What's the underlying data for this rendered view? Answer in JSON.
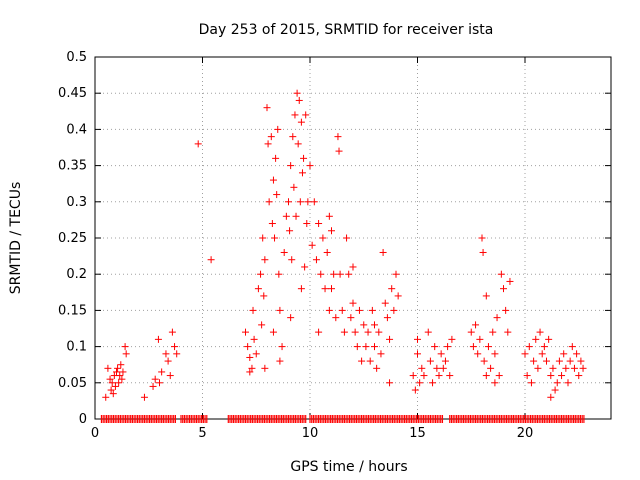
{
  "chart_data": {
    "type": "scatter",
    "title": "Day 253 of 2015, SRMTID for receiver ista",
    "xlabel": "GPS time / hours",
    "ylabel": "SRMTID / TECUs",
    "xlim": [
      0,
      24
    ],
    "ylim": [
      0,
      0.5
    ],
    "xticks": [
      0,
      5,
      10,
      15,
      20
    ],
    "yticks": [
      0,
      0.05,
      0.1,
      0.15,
      0.2,
      0.25,
      0.3,
      0.35,
      0.4,
      0.45,
      0.5
    ],
    "xtick_labels": [
      "0",
      "5",
      "10",
      "15",
      "20"
    ],
    "ytick_labels": [
      "0",
      "0.05",
      "0.1",
      "0.15",
      "0.2",
      "0.25",
      "0.3",
      "0.35",
      "0.4",
      "0.45",
      "0.5"
    ],
    "grid": true,
    "marker": "+",
    "marker_color": "#ff0000",
    "zero_line_segments": [
      [
        0.3,
        3.8
      ],
      [
        4.0,
        5.2
      ],
      [
        6.2,
        9.8
      ],
      [
        10.0,
        16.2
      ],
      [
        16.5,
        22.8
      ]
    ],
    "points": [
      [
        0.6,
        0.07
      ],
      [
        0.7,
        0.055
      ],
      [
        0.75,
        0.04
      ],
      [
        0.8,
        0.05
      ],
      [
        0.85,
        0.035
      ],
      [
        0.9,
        0.06
      ],
      [
        0.95,
        0.045
      ],
      [
        1.0,
        0.065
      ],
      [
        1.05,
        0.07
      ],
      [
        1.1,
        0.05
      ],
      [
        1.15,
        0.06
      ],
      [
        1.2,
        0.075
      ],
      [
        1.25,
        0.055
      ],
      [
        1.3,
        0.065
      ],
      [
        1.4,
        0.1
      ],
      [
        1.45,
        0.09
      ],
      [
        0.5,
        0.03
      ],
      [
        2.3,
        0.03
      ],
      [
        2.7,
        0.045
      ],
      [
        2.8,
        0.055
      ],
      [
        3.0,
        0.05
      ],
      [
        3.1,
        0.065
      ],
      [
        3.3,
        0.09
      ],
      [
        3.4,
        0.08
      ],
      [
        3.5,
        0.06
      ],
      [
        3.6,
        0.12
      ],
      [
        3.7,
        0.1
      ],
      [
        3.8,
        0.09
      ],
      [
        2.95,
        0.11
      ],
      [
        4.8,
        0.38
      ],
      [
        5.4,
        0.22
      ],
      [
        7.0,
        0.12
      ],
      [
        7.1,
        0.1
      ],
      [
        7.2,
        0.085
      ],
      [
        7.3,
        0.07
      ],
      [
        7.35,
        0.15
      ],
      [
        7.4,
        0.11
      ],
      [
        7.5,
        0.09
      ],
      [
        7.6,
        0.18
      ],
      [
        7.7,
        0.2
      ],
      [
        7.75,
        0.13
      ],
      [
        7.8,
        0.25
      ],
      [
        7.85,
        0.17
      ],
      [
        7.9,
        0.22
      ],
      [
        8.0,
        0.43
      ],
      [
        8.05,
        0.38
      ],
      [
        8.1,
        0.3
      ],
      [
        8.2,
        0.39
      ],
      [
        8.25,
        0.27
      ],
      [
        8.3,
        0.33
      ],
      [
        8.35,
        0.25
      ],
      [
        8.4,
        0.36
      ],
      [
        8.45,
        0.31
      ],
      [
        8.5,
        0.4
      ],
      [
        8.55,
        0.2
      ],
      [
        8.6,
        0.15
      ],
      [
        8.7,
        0.1
      ],
      [
        8.8,
        0.23
      ],
      [
        8.9,
        0.28
      ],
      [
        9.0,
        0.3
      ],
      [
        9.05,
        0.26
      ],
      [
        9.1,
        0.35
      ],
      [
        9.15,
        0.22
      ],
      [
        9.2,
        0.39
      ],
      [
        9.25,
        0.32
      ],
      [
        9.3,
        0.42
      ],
      [
        9.35,
        0.28
      ],
      [
        9.4,
        0.45
      ],
      [
        9.45,
        0.38
      ],
      [
        9.5,
        0.44
      ],
      [
        9.55,
        0.3
      ],
      [
        9.6,
        0.41
      ],
      [
        9.65,
        0.34
      ],
      [
        9.7,
        0.36
      ],
      [
        9.75,
        0.21
      ],
      [
        9.8,
        0.42
      ],
      [
        9.85,
        0.27
      ],
      [
        9.9,
        0.3
      ],
      [
        10.0,
        0.35
      ],
      [
        10.1,
        0.24
      ],
      [
        10.2,
        0.3
      ],
      [
        10.3,
        0.22
      ],
      [
        10.4,
        0.27
      ],
      [
        10.5,
        0.2
      ],
      [
        10.6,
        0.25
      ],
      [
        10.7,
        0.18
      ],
      [
        10.8,
        0.23
      ],
      [
        10.9,
        0.15
      ],
      [
        11.0,
        0.26
      ],
      [
        11.1,
        0.2
      ],
      [
        11.2,
        0.14
      ],
      [
        11.3,
        0.39
      ],
      [
        11.35,
        0.37
      ],
      [
        11.4,
        0.2
      ],
      [
        11.5,
        0.15
      ],
      [
        11.6,
        0.12
      ],
      [
        11.7,
        0.25
      ],
      [
        11.8,
        0.2
      ],
      [
        11.9,
        0.14
      ],
      [
        12.0,
        0.16
      ],
      [
        12.1,
        0.12
      ],
      [
        12.2,
        0.1
      ],
      [
        12.3,
        0.15
      ],
      [
        12.4,
        0.08
      ],
      [
        12.5,
        0.13
      ],
      [
        12.6,
        0.1
      ],
      [
        12.7,
        0.12
      ],
      [
        12.8,
        0.08
      ],
      [
        12.9,
        0.15
      ],
      [
        13.0,
        0.1
      ],
      [
        13.1,
        0.07
      ],
      [
        13.2,
        0.12
      ],
      [
        13.3,
        0.09
      ],
      [
        13.4,
        0.23
      ],
      [
        13.5,
        0.16
      ],
      [
        13.6,
        0.14
      ],
      [
        13.7,
        0.11
      ],
      [
        13.8,
        0.18
      ],
      [
        13.9,
        0.15
      ],
      [
        14.0,
        0.2
      ],
      [
        14.1,
        0.17
      ],
      [
        7.2,
        0.065
      ],
      [
        7.9,
        0.07
      ],
      [
        8.3,
        0.12
      ],
      [
        8.6,
        0.08
      ],
      [
        9.1,
        0.14
      ],
      [
        9.6,
        0.18
      ],
      [
        10.4,
        0.12
      ],
      [
        10.9,
        0.28
      ],
      [
        11.0,
        0.18
      ],
      [
        12.0,
        0.21
      ],
      [
        13.0,
        0.13
      ],
      [
        13.7,
        0.05
      ],
      [
        14.8,
        0.06
      ],
      [
        14.9,
        0.04
      ],
      [
        15.0,
        0.09
      ],
      [
        15.1,
        0.05
      ],
      [
        15.2,
        0.07
      ],
      [
        15.3,
        0.06
      ],
      [
        15.5,
        0.12
      ],
      [
        15.6,
        0.08
      ],
      [
        15.7,
        0.05
      ],
      [
        15.8,
        0.1
      ],
      [
        15.9,
        0.07
      ],
      [
        16.0,
        0.06
      ],
      [
        16.1,
        0.09
      ],
      [
        16.2,
        0.07
      ],
      [
        16.3,
        0.08
      ],
      [
        16.4,
        0.1
      ],
      [
        16.5,
        0.06
      ],
      [
        16.6,
        0.11
      ],
      [
        15.0,
        0.11
      ],
      [
        17.5,
        0.12
      ],
      [
        17.6,
        0.1
      ],
      [
        17.7,
        0.13
      ],
      [
        17.8,
        0.09
      ],
      [
        17.9,
        0.11
      ],
      [
        18.0,
        0.25
      ],
      [
        18.05,
        0.23
      ],
      [
        18.1,
        0.08
      ],
      [
        18.2,
        0.17
      ],
      [
        18.3,
        0.1
      ],
      [
        18.4,
        0.07
      ],
      [
        18.5,
        0.12
      ],
      [
        18.6,
        0.09
      ],
      [
        18.7,
        0.14
      ],
      [
        18.8,
        0.06
      ],
      [
        18.9,
        0.2
      ],
      [
        19.0,
        0.18
      ],
      [
        19.1,
        0.15
      ],
      [
        19.2,
        0.12
      ],
      [
        19.3,
        0.19
      ],
      [
        18.2,
        0.06
      ],
      [
        18.6,
        0.05
      ],
      [
        20.0,
        0.09
      ],
      [
        20.1,
        0.06
      ],
      [
        20.2,
        0.1
      ],
      [
        20.3,
        0.05
      ],
      [
        20.4,
        0.08
      ],
      [
        20.5,
        0.11
      ],
      [
        20.6,
        0.07
      ],
      [
        20.7,
        0.12
      ],
      [
        20.8,
        0.09
      ],
      [
        20.9,
        0.1
      ],
      [
        21.0,
        0.08
      ],
      [
        21.1,
        0.11
      ],
      [
        21.2,
        0.06
      ],
      [
        21.3,
        0.07
      ],
      [
        21.4,
        0.04
      ],
      [
        21.5,
        0.05
      ],
      [
        21.6,
        0.08
      ],
      [
        21.7,
        0.06
      ],
      [
        21.8,
        0.09
      ],
      [
        21.9,
        0.07
      ],
      [
        22.0,
        0.05
      ],
      [
        22.1,
        0.08
      ],
      [
        22.2,
        0.1
      ],
      [
        22.3,
        0.07
      ],
      [
        22.4,
        0.09
      ],
      [
        22.5,
        0.06
      ],
      [
        22.6,
        0.08
      ],
      [
        22.7,
        0.07
      ],
      [
        21.2,
        0.03
      ]
    ]
  }
}
